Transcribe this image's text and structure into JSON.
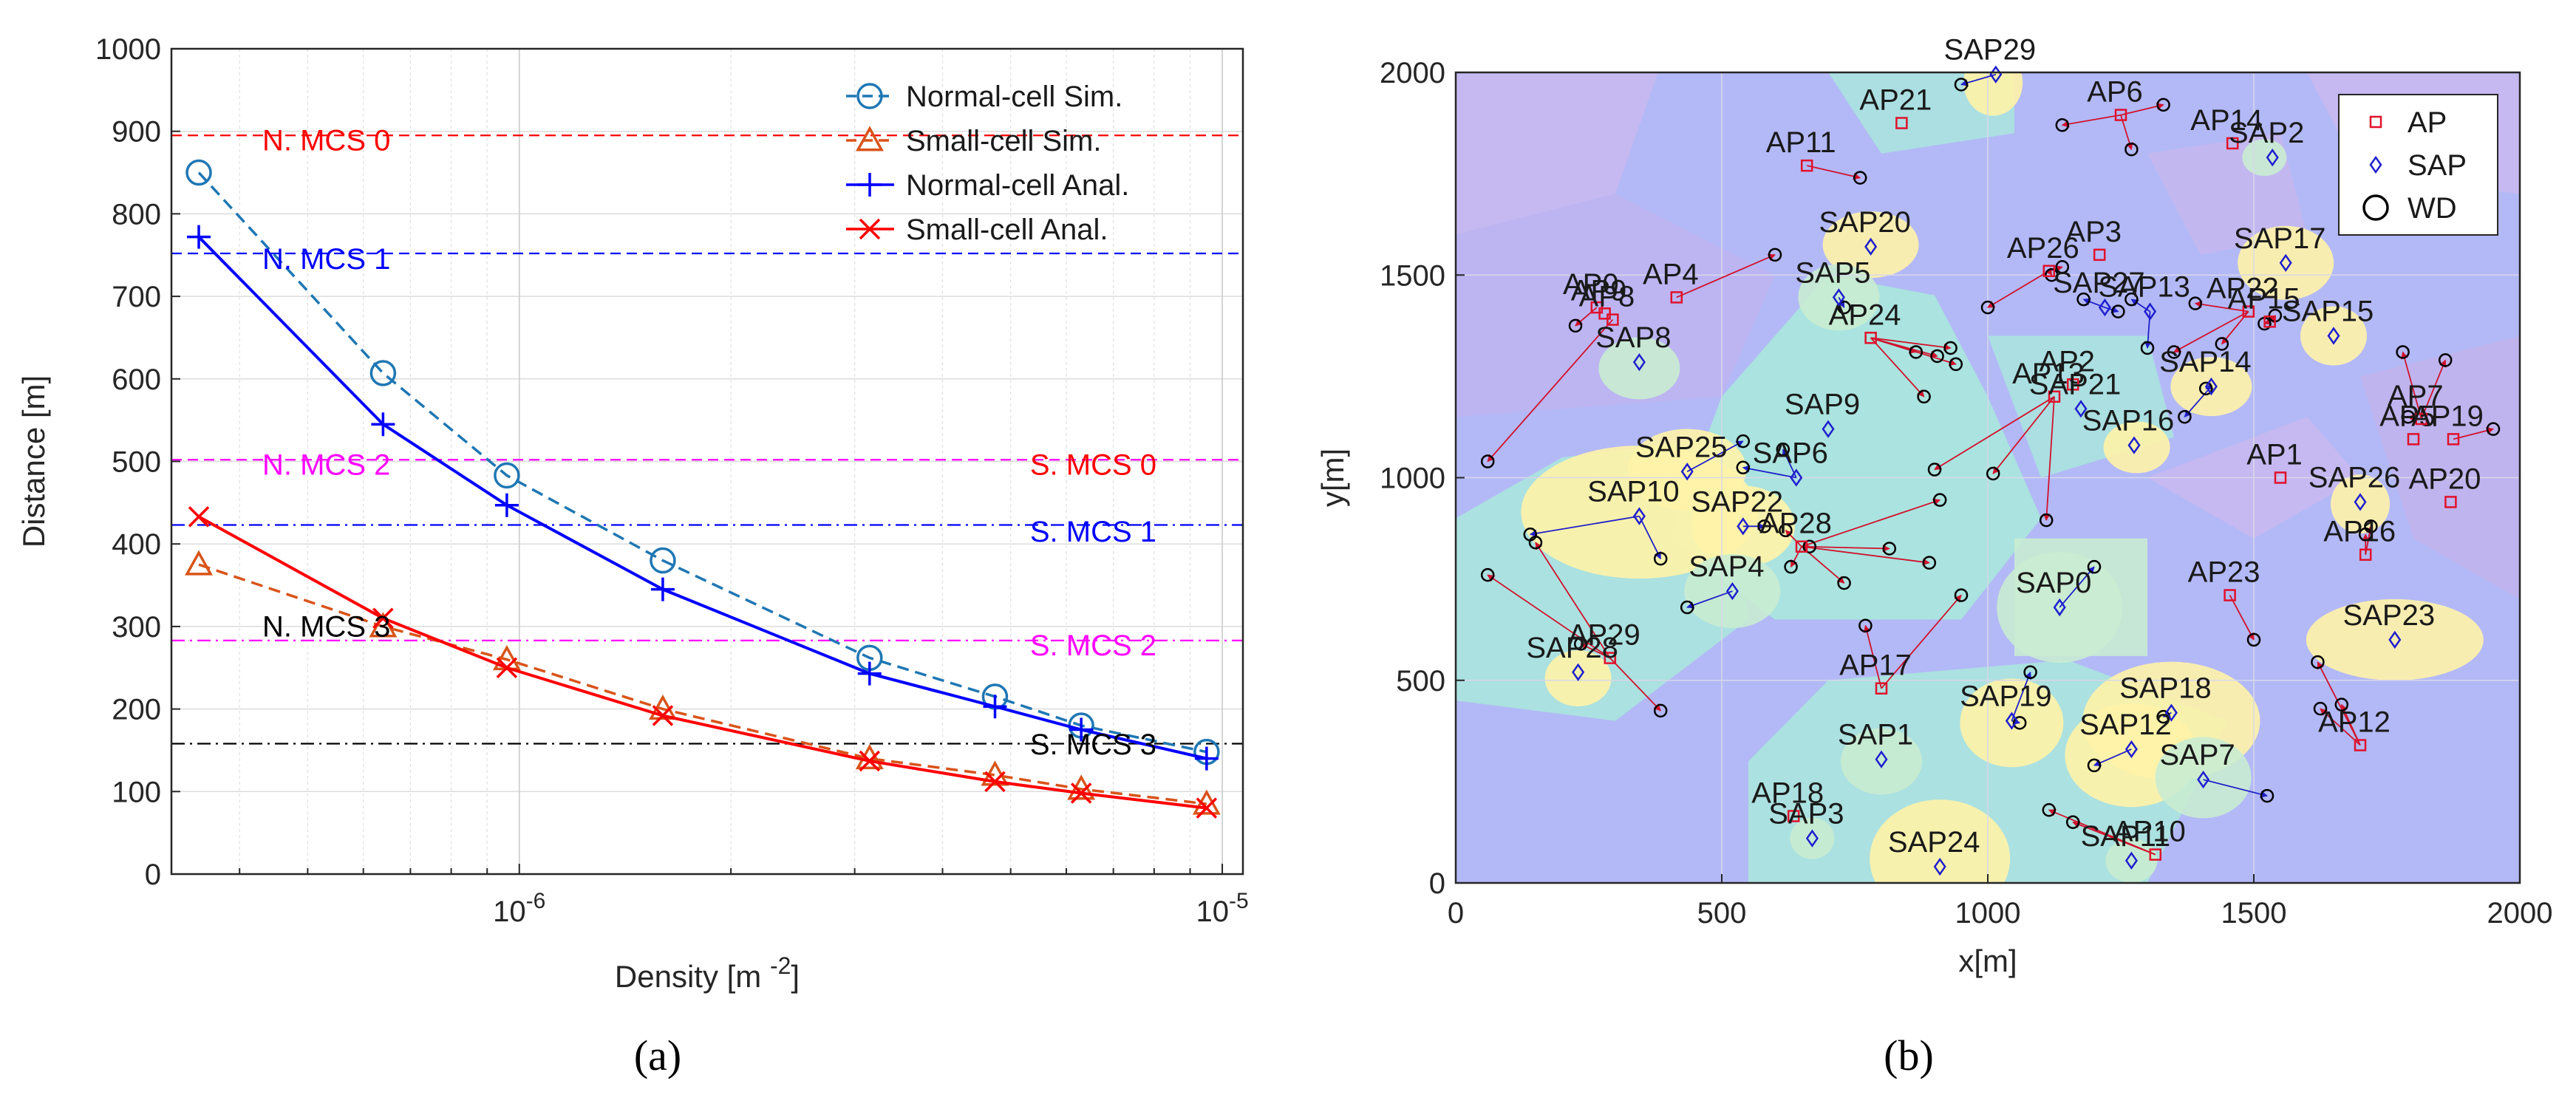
{
  "chart_data": [
    {
      "type": "line",
      "panel_label": "(a)",
      "xlabel": "Density [m",
      "xlabel_sup": "-2",
      "xlabel_suffix": "]",
      "ylabel": "Distance [m]",
      "x_scale": "log",
      "xlim": [
        3.2e-07,
        1.07e-05
      ],
      "ylim": [
        0,
        1000
      ],
      "grid": true,
      "legend_position": "top-right",
      "y_ticks": [
        0,
        100,
        200,
        300,
        400,
        500,
        600,
        700,
        800,
        900,
        1000
      ],
      "x_tick_labels": [
        {
          "value": 1e-06,
          "base": "10",
          "exp": "-6"
        },
        {
          "value": 1e-05,
          "base": "10",
          "exp": "-5"
        }
      ],
      "series": [
        {
          "name": "Normal-cell Sim.",
          "color": "#1f77b4",
          "line_style": "dashed",
          "marker": "circle",
          "x": [
            3.5e-07,
            6.4e-07,
            9.6e-07,
            1.6e-06,
            3.15e-06,
            4.75e-06,
            6.3e-06,
            9.5e-06
          ],
          "y": [
            850,
            607,
            483,
            380,
            262,
            215,
            180,
            148
          ]
        },
        {
          "name": "Small-cell Sim.",
          "color": "#d95319",
          "line_style": "dashed",
          "marker": "triangle",
          "x": [
            3.5e-07,
            6.4e-07,
            9.6e-07,
            1.6e-06,
            3.15e-06,
            4.75e-06,
            6.3e-06,
            9.5e-06
          ],
          "y": [
            375,
            300,
            260,
            200,
            140,
            120,
            103,
            85
          ]
        },
        {
          "name": "Normal-cell Anal.",
          "color": "#0000ff",
          "line_style": "solid",
          "marker": "plus",
          "x": [
            3.5e-07,
            6.4e-07,
            9.6e-07,
            1.6e-06,
            3.15e-06,
            4.75e-06,
            6.3e-06,
            9.5e-06
          ],
          "y": [
            772,
            545,
            447,
            345,
            243,
            203,
            175,
            140
          ]
        },
        {
          "name": "Small-cell Anal.",
          "color": "#ff0000",
          "line_style": "solid",
          "marker": "x",
          "x": [
            3.5e-07,
            6.4e-07,
            9.6e-07,
            1.6e-06,
            3.15e-06,
            4.75e-06,
            6.3e-06,
            9.5e-06
          ],
          "y": [
            433,
            310,
            250,
            192,
            137,
            112,
            98,
            80
          ]
        }
      ],
      "thresholds": [
        {
          "label": "N. MCS 0",
          "y": 895,
          "color": "#ff0000",
          "style": "dashed",
          "label_side": "left"
        },
        {
          "label": "N. MCS 1",
          "y": 752,
          "color": "#0000ff",
          "style": "dashed",
          "label_side": "left"
        },
        {
          "label": "N. MCS 2",
          "y": 502,
          "color": "#ff00ff",
          "style": "dashed",
          "label_side": "left"
        },
        {
          "label": "N. MCS 3",
          "y": 308,
          "color": "#000000",
          "style": "dashed",
          "label_side": "left",
          "no_line": true
        },
        {
          "label": "S. MCS 0",
          "y": 503,
          "color": "#ff0000",
          "style": "dashdot",
          "label_side": "right",
          "no_line": true
        },
        {
          "label": "S. MCS 1",
          "y": 423,
          "color": "#0000ff",
          "style": "dashdot",
          "label_side": "right"
        },
        {
          "label": "S. MCS 2",
          "y": 283,
          "color": "#ff00ff",
          "style": "dashdot",
          "label_side": "right"
        },
        {
          "label": "S. MCS 3",
          "y": 158,
          "color": "#000000",
          "style": "dashdot",
          "label_side": "right"
        }
      ]
    },
    {
      "type": "scatter",
      "panel_label": "(b)",
      "xlabel": "x[m]",
      "ylabel": "y[m]",
      "xlim": [
        0,
        2000
      ],
      "ylim": [
        0,
        2000
      ],
      "x_ticks": [
        0,
        500,
        1000,
        1500,
        2000
      ],
      "y_ticks": [
        0,
        500,
        1000,
        1500,
        2000
      ],
      "grid": true,
      "legend_position": "top-right",
      "legend": [
        {
          "name": "AP",
          "marker": "square",
          "color": "#e0112b"
        },
        {
          "name": "SAP",
          "marker": "diamond",
          "color": "#1f1fcf"
        },
        {
          "name": "WD",
          "marker": "circle",
          "color": "#000000"
        }
      ],
      "cell_colors": {
        "normal_a": "#b3b9f7",
        "normal_b": "#c6b8f0",
        "small": "#fff3a8",
        "teal": "#a9e8dc",
        "green": "#c9ecd2"
      },
      "APs": [
        {
          "label": "AP21",
          "x": 838,
          "y": 1875
        },
        {
          "label": "AP6",
          "x": 1250,
          "y": 1895
        },
        {
          "label": "AP14",
          "x": 1460,
          "y": 1825
        },
        {
          "label": "AP11",
          "x": 660,
          "y": 1770
        },
        {
          "label": "AP3",
          "x": 1210,
          "y": 1550
        },
        {
          "label": "AP26",
          "x": 1115,
          "y": 1510
        },
        {
          "label": "AP0",
          "x": 265,
          "y": 1420
        },
        {
          "label": "AP9",
          "x": 280,
          "y": 1405
        },
        {
          "label": "AP8",
          "x": 295,
          "y": 1390
        },
        {
          "label": "AP4",
          "x": 415,
          "y": 1445
        },
        {
          "label": "AP24",
          "x": 780,
          "y": 1345
        },
        {
          "label": "AP22",
          "x": 1490,
          "y": 1410
        },
        {
          "label": "AP13",
          "x": 1125,
          "y": 1200
        },
        {
          "label": "AP2",
          "x": 1160,
          "y": 1230
        },
        {
          "label": "AP1",
          "x": 1550,
          "y": 1000
        },
        {
          "label": "AP5",
          "x": 1800,
          "y": 1095
        },
        {
          "label": "AP7",
          "x": 1815,
          "y": 1145
        },
        {
          "label": "AP19",
          "x": 1875,
          "y": 1095
        },
        {
          "label": "AP20",
          "x": 1870,
          "y": 940
        },
        {
          "label": "AP16",
          "x": 1710,
          "y": 810
        },
        {
          "label": "AP28",
          "x": 650,
          "y": 830
        },
        {
          "label": "AP23",
          "x": 1455,
          "y": 710
        },
        {
          "label": "AP29",
          "x": 290,
          "y": 555
        },
        {
          "label": "AP17",
          "x": 800,
          "y": 480
        },
        {
          "label": "AP12",
          "x": 1700,
          "y": 340
        },
        {
          "label": "AP18",
          "x": 635,
          "y": 165
        },
        {
          "label": "AP10",
          "x": 1315,
          "y": 70
        },
        {
          "label": "AP15",
          "x": 1530,
          "y": 1385
        }
      ],
      "SAPs": [
        {
          "label": "SAP29",
          "x": 1015,
          "y": 1995
        },
        {
          "label": "SAP2",
          "x": 1535,
          "y": 1790
        },
        {
          "label": "SAP20",
          "x": 780,
          "y": 1570
        },
        {
          "label": "SAP17",
          "x": 1560,
          "y": 1530
        },
        {
          "label": "SAP5",
          "x": 720,
          "y": 1445
        },
        {
          "label": "SAP27",
          "x": 1220,
          "y": 1420
        },
        {
          "label": "SAP13",
          "x": 1305,
          "y": 1410
        },
        {
          "label": "SAP15",
          "x": 1650,
          "y": 1350
        },
        {
          "label": "SAP8",
          "x": 345,
          "y": 1285
        },
        {
          "label": "SAP14",
          "x": 1420,
          "y": 1225
        },
        {
          "label": "SAP21",
          "x": 1175,
          "y": 1170
        },
        {
          "label": "SAP16",
          "x": 1275,
          "y": 1080
        },
        {
          "label": "SAP9",
          "x": 700,
          "y": 1120
        },
        {
          "label": "SAP6",
          "x": 640,
          "y": 1000
        },
        {
          "label": "SAP25",
          "x": 435,
          "y": 1015
        },
        {
          "label": "SAP10",
          "x": 345,
          "y": 905
        },
        {
          "label": "SAP22",
          "x": 540,
          "y": 880
        },
        {
          "label": "SAP26",
          "x": 1700,
          "y": 940
        },
        {
          "label": "SAP4",
          "x": 520,
          "y": 720
        },
        {
          "label": "SAP0",
          "x": 1135,
          "y": 680
        },
        {
          "label": "SAP23",
          "x": 1765,
          "y": 600
        },
        {
          "label": "SAP28",
          "x": 230,
          "y": 520
        },
        {
          "label": "SAP18",
          "x": 1345,
          "y": 420
        },
        {
          "label": "SAP19",
          "x": 1045,
          "y": 400
        },
        {
          "label": "SAP12",
          "x": 1270,
          "y": 330
        },
        {
          "label": "SAP1",
          "x": 800,
          "y": 305
        },
        {
          "label": "SAP7",
          "x": 1405,
          "y": 255
        },
        {
          "label": "SAP3",
          "x": 670,
          "y": 110
        },
        {
          "label": "SAP24",
          "x": 910,
          "y": 40
        },
        {
          "label": "SAP11",
          "x": 1270,
          "y": 55
        }
      ],
      "WDs": [
        [
          950,
          1970
        ],
        [
          1140,
          1870
        ],
        [
          1270,
          1810
        ],
        [
          1330,
          1920
        ],
        [
          760,
          1740
        ],
        [
          600,
          1550
        ],
        [
          1140,
          1520
        ],
        [
          1120,
          1500
        ],
        [
          1180,
          1440
        ],
        [
          1270,
          1440
        ],
        [
          1245,
          1410
        ],
        [
          1390,
          1430
        ],
        [
          1440,
          1330
        ],
        [
          730,
          1420
        ],
        [
          1300,
          1320
        ],
        [
          1000,
          1420
        ],
        [
          905,
          1300
        ],
        [
          940,
          1280
        ],
        [
          930,
          1320
        ],
        [
          1520,
          1380
        ],
        [
          225,
          1375
        ],
        [
          865,
          1310
        ],
        [
          880,
          1200
        ],
        [
          1350,
          1310
        ],
        [
          1410,
          1220
        ],
        [
          60,
          1040
        ],
        [
          1540,
          1400
        ],
        [
          1860,
          1290
        ],
        [
          1780,
          1310
        ],
        [
          1950,
          1120
        ],
        [
          1790,
          1150
        ],
        [
          1370,
          1150
        ],
        [
          540,
          1090
        ],
        [
          615,
          1070
        ],
        [
          540,
          1025
        ],
        [
          900,
          1020
        ],
        [
          1010,
          1010
        ],
        [
          910,
          945
        ],
        [
          1110,
          895
        ],
        [
          1720,
          880
        ],
        [
          1710,
          860
        ],
        [
          580,
          880
        ],
        [
          620,
          870
        ],
        [
          665,
          830
        ],
        [
          815,
          825
        ],
        [
          890,
          790
        ],
        [
          630,
          780
        ],
        [
          730,
          740
        ],
        [
          150,
          840
        ],
        [
          140,
          860
        ],
        [
          385,
          800
        ],
        [
          60,
          760
        ],
        [
          1200,
          780
        ],
        [
          1500,
          600
        ],
        [
          1620,
          545
        ],
        [
          950,
          710
        ],
        [
          770,
          635
        ],
        [
          435,
          680
        ],
        [
          235,
          590
        ],
        [
          385,
          425
        ],
        [
          1060,
          395
        ],
        [
          1080,
          520
        ],
        [
          1330,
          410
        ],
        [
          1200,
          290
        ],
        [
          1625,
          430
        ],
        [
          1665,
          440
        ],
        [
          1525,
          215
        ],
        [
          1115,
          180
        ],
        [
          1160,
          150
        ]
      ]
    }
  ]
}
